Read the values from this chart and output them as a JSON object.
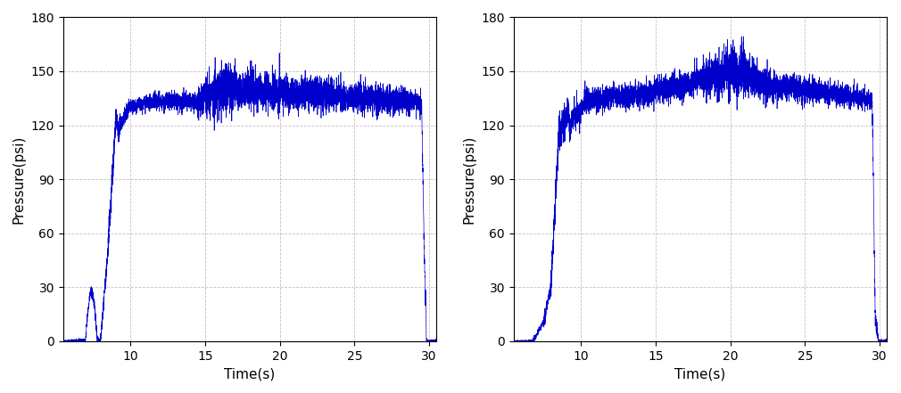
{
  "line_color": "#0000CC",
  "line_width": 0.5,
  "ylim": [
    0,
    180
  ],
  "xlim": [
    5.5,
    30.5
  ],
  "yticks": [
    0,
    30,
    60,
    90,
    120,
    150,
    180
  ],
  "xticks": [
    10,
    15,
    20,
    25,
    30
  ],
  "xticklabels": [
    "10",
    "15",
    "20",
    "25",
    "30"
  ],
  "xlabel": "Time(s)",
  "ylabel": "Pressure(psi)",
  "grid_color": "#999999",
  "grid_linestyle": "--",
  "grid_alpha": 0.6,
  "background_color": "#ffffff",
  "seed1": 42,
  "seed2": 99,
  "title_fontsize": 11,
  "tick_fontsize": 10,
  "label_fontsize": 11
}
